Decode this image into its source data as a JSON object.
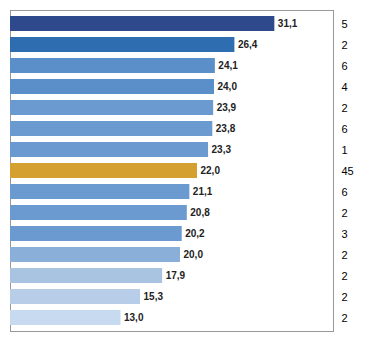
{
  "chart_data": {
    "type": "bar",
    "orientation": "horizontal",
    "categories": [
      "5",
      "2",
      "6",
      "4",
      "2",
      "6",
      "1",
      "45",
      "6",
      "2",
      "3",
      "2",
      "2",
      "2",
      "2"
    ],
    "values": [
      31.1,
      26.4,
      24.1,
      24.0,
      23.9,
      23.8,
      23.3,
      22.0,
      21.1,
      20.8,
      20.2,
      20.0,
      17.9,
      15.3,
      13.0
    ],
    "value_labels": [
      "31,1",
      "26,4",
      "24,1",
      "24,0",
      "23,9",
      "23,8",
      "23,3",
      "22,0",
      "21,1",
      "20,8",
      "20,2",
      "20,0",
      "17,9",
      "15,3",
      "13,0"
    ],
    "colors": [
      "#2E4A8C",
      "#2E6DB0",
      "#5B8FC9",
      "#5B8FC9",
      "#6A9AD0",
      "#6A9AD0",
      "#6A9AD0",
      "#D4A030",
      "#6A9AD0",
      "#6A9AD0",
      "#6A9AD0",
      "#8AAFD8",
      "#A8C4E0",
      "#B8CEE8",
      "#C8DAF0"
    ],
    "xlim": [
      0,
      38
    ],
    "xticks": [],
    "data_labels": true,
    "tick_labels": "y",
    "grid": false
  }
}
